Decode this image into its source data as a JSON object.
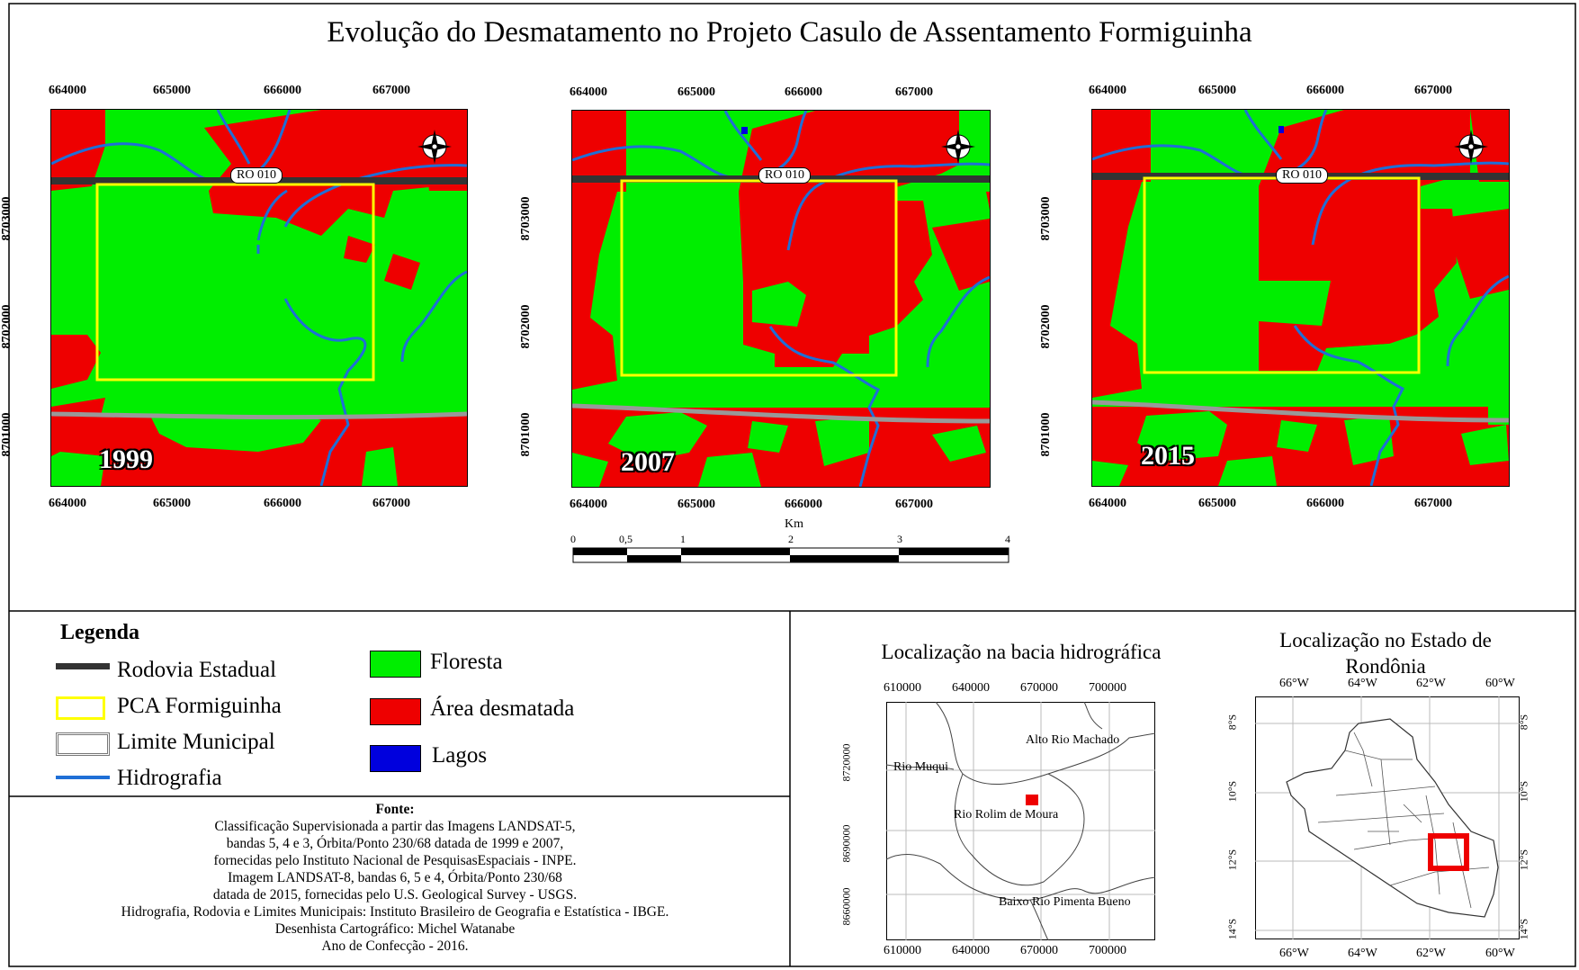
{
  "title": "Evolução do Desmatamento no Projeto Casulo de Assentamento Formiguinha",
  "maps": [
    {
      "year": "1999"
    },
    {
      "year": "2007"
    },
    {
      "year": "2015"
    }
  ],
  "map_coords": {
    "x_ticks": [
      "664000",
      "665000",
      "666000",
      "667000"
    ],
    "y_ticks": [
      "8703000",
      "8702000",
      "8701000"
    ],
    "road_label": "RO 010"
  },
  "compass": {
    "n": "N",
    "s": "S",
    "e": "E",
    "w": "W"
  },
  "scale_bar": {
    "unit": "Km",
    "ticks": [
      "0",
      "0,5",
      "1",
      "2",
      "3",
      "4"
    ]
  },
  "legend": {
    "title": "Legenda",
    "items": [
      {
        "label": "Rodovia Estadual",
        "color": "#333333"
      },
      {
        "label": "PCA Formiguinha",
        "color": "#ffff00"
      },
      {
        "label": "Limite Municipal",
        "color": "#999999"
      },
      {
        "label": "Hidrografia",
        "color": "#1f6fd6"
      },
      {
        "label": "Floresta",
        "color": "#00ee00"
      },
      {
        "label": "Área desmatada",
        "color": "#ee0000"
      },
      {
        "label": "Lagos",
        "color": "#0000dd"
      }
    ]
  },
  "fonte": {
    "title": "Fonte:",
    "lines": [
      "Classificação Supervisionada a partir das Imagens LANDSAT-5,",
      "bandas 5, 4 e 3, Órbita/Ponto 230/68 datada de 1999 e 2007,",
      "fornecidas pelo Instituto Nacional de PesquisasEspaciais - INPE.",
      "Imagem LANDSAT-8, bandas 6, 5 e 4, Órbita/Ponto 230/68",
      "datada de 2015, fornecidas pelo U.S. Geological Survey - USGS.",
      "Hidrografia, Rodovia e Limites Municipais: Instituto Brasileiro de Geografia e Estatística - IBGE.",
      "Desenhista Cartográfico: Michel Watanabe",
      "Ano de Confecção - 2016."
    ]
  },
  "inset_basin": {
    "title": "Localização na bacia hidrográfica",
    "x_ticks": [
      "610000",
      "640000",
      "670000",
      "700000"
    ],
    "y_ticks": [
      "8720000",
      "8690000",
      "8660000"
    ],
    "labels": [
      "Alto Rio Machado",
      "Rio Muqui",
      "Rio Rolim de Moura",
      "Baixo Rio Pimenta Bueno"
    ]
  },
  "inset_state": {
    "title": "Localização no Estado de Rondônia",
    "x_ticks": [
      "66°W",
      "64°W",
      "62°W",
      "60°W"
    ],
    "y_ticks": [
      "8°S",
      "10°S",
      "12°S",
      "14°S"
    ]
  }
}
